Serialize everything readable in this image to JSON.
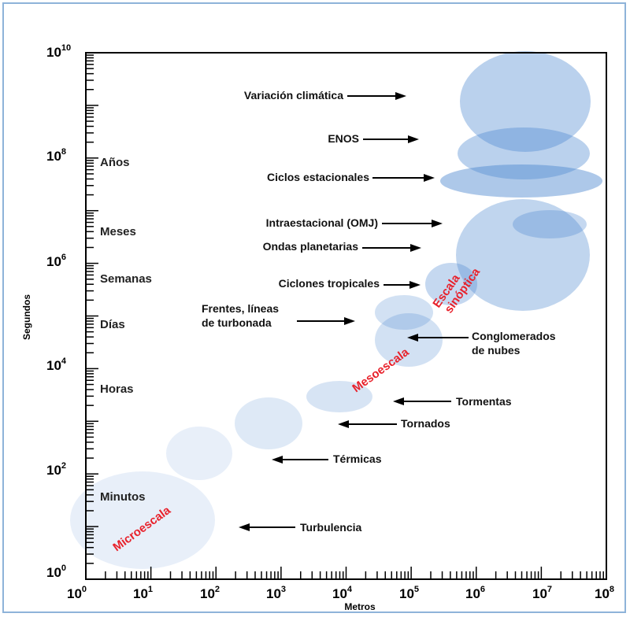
{
  "axes": {
    "xlabel": "Metros",
    "ylabel": "Segundos",
    "x_scale": "log",
    "y_scale": "log",
    "x_range_exp": [
      0,
      8
    ],
    "y_range_exp": [
      0,
      10
    ],
    "x_ticks": [
      {
        "base": "10",
        "exp": "0"
      },
      {
        "base": "10",
        "exp": "1"
      },
      {
        "base": "10",
        "exp": "2"
      },
      {
        "base": "10",
        "exp": "3"
      },
      {
        "base": "10",
        "exp": "4"
      },
      {
        "base": "10",
        "exp": "5"
      },
      {
        "base": "10",
        "exp": "6"
      },
      {
        "base": "10",
        "exp": "7"
      },
      {
        "base": "10",
        "exp": "8"
      }
    ],
    "y_ticks": [
      {
        "base": "10",
        "exp": "0"
      },
      {
        "base": "10",
        "exp": "2"
      },
      {
        "base": "10",
        "exp": "4"
      },
      {
        "base": "10",
        "exp": "6"
      },
      {
        "base": "10",
        "exp": "8"
      },
      {
        "base": "10",
        "exp": "10"
      }
    ]
  },
  "time_labels": [
    "Años",
    "Meses",
    "Semanas",
    "Días",
    "Horas",
    "Minutos"
  ],
  "scale_labels": {
    "micro": "Microescala",
    "meso": "Mesoescala",
    "synoptic_line1": "Escala",
    "synoptic_line2": "sinóptica"
  },
  "phenomena": {
    "variacion": "Variación climática",
    "enos": "ENOS",
    "ciclos": "Ciclos estacionales",
    "intra": "Intraestacional (OMJ)",
    "ondas": "Ondas planetarias",
    "ciclones": "Ciclones tropicales",
    "frentes_line1": "Frentes, líneas",
    "frentes_line2": "de turbonada",
    "conglo_line1": "Conglomerados",
    "conglo_line2": "de nubes",
    "tormentas": "Tormentas",
    "tornados": "Tornados",
    "termicas": "Térmicas",
    "turbulencia": "Turbulencia"
  },
  "colors": {
    "blob": "#4a86cf",
    "scale_label": "#e8212b",
    "frame": "#8eb3d9"
  }
}
